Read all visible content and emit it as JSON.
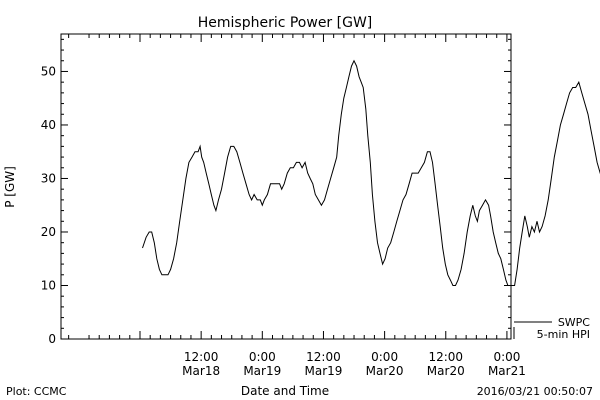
{
  "chart_data": {
    "type": "line",
    "title": "Hemispheric Power [GW]",
    "xlabel": "Date and Time",
    "ylabel": "P [GW]",
    "x_range_hours": [
      -15.5,
      72.8
    ],
    "ylim": [
      0,
      57
    ],
    "y_ticks": [
      0,
      10,
      20,
      30,
      40,
      50
    ],
    "x_ticks": [
      {
        "x": 12,
        "line1": "12:00",
        "line2": "Mar18"
      },
      {
        "x": 24,
        "line1": "0:00",
        "line2": "Mar19"
      },
      {
        "x": 36,
        "line1": "12:00",
        "line2": "Mar19"
      },
      {
        "x": 48,
        "line1": "0:00",
        "line2": "Mar20"
      },
      {
        "x": 60,
        "line1": "12:00",
        "line2": "Mar20"
      },
      {
        "x": 72,
        "line1": "0:00",
        "line2": "Mar21"
      }
    ],
    "grid": false,
    "legend": {
      "placement": "right-bottom",
      "line1": "SWPC",
      "line2": "5-min HPI"
    },
    "series": [
      {
        "name": "SWPC",
        "color": "#000000",
        "points": [
          [
            0.5,
            17
          ],
          [
            1.2,
            19
          ],
          [
            1.8,
            20
          ],
          [
            2.3,
            20
          ],
          [
            2.8,
            18
          ],
          [
            3.3,
            15
          ],
          [
            3.8,
            13
          ],
          [
            4.3,
            12
          ],
          [
            5.0,
            12
          ],
          [
            5.5,
            12
          ],
          [
            6.0,
            13
          ],
          [
            6.6,
            15
          ],
          [
            7.2,
            18
          ],
          [
            7.8,
            22
          ],
          [
            8.4,
            26
          ],
          [
            9.0,
            30
          ],
          [
            9.6,
            33
          ],
          [
            10.2,
            34
          ],
          [
            10.8,
            35
          ],
          [
            11.4,
            35
          ],
          [
            11.8,
            36
          ],
          [
            12.1,
            34
          ],
          [
            12.5,
            33
          ],
          [
            13.0,
            31
          ],
          [
            13.5,
            29
          ],
          [
            14.0,
            27
          ],
          [
            14.5,
            25
          ],
          [
            14.9,
            24
          ],
          [
            15.4,
            26
          ],
          [
            16.0,
            28
          ],
          [
            16.6,
            31
          ],
          [
            17.2,
            34
          ],
          [
            17.8,
            36
          ],
          [
            18.4,
            36
          ],
          [
            19.0,
            35
          ],
          [
            19.6,
            33
          ],
          [
            20.2,
            31
          ],
          [
            20.8,
            29
          ],
          [
            21.4,
            27
          ],
          [
            21.9,
            26
          ],
          [
            22.4,
            27
          ],
          [
            23.0,
            26
          ],
          [
            23.6,
            26
          ],
          [
            24.0,
            25
          ],
          [
            24.4,
            26
          ],
          [
            25.0,
            27
          ],
          [
            25.6,
            29
          ],
          [
            26.2,
            29
          ],
          [
            26.8,
            29
          ],
          [
            27.4,
            29
          ],
          [
            27.8,
            28
          ],
          [
            28.3,
            29
          ],
          [
            28.9,
            31
          ],
          [
            29.5,
            32
          ],
          [
            30.1,
            32
          ],
          [
            30.7,
            33
          ],
          [
            31.3,
            33
          ],
          [
            31.8,
            32
          ],
          [
            32.4,
            33
          ],
          [
            32.9,
            31
          ],
          [
            33.4,
            30
          ],
          [
            33.9,
            29
          ],
          [
            34.4,
            27
          ],
          [
            35.0,
            26
          ],
          [
            35.6,
            25
          ],
          [
            36.2,
            26
          ],
          [
            36.8,
            28
          ],
          [
            37.4,
            30
          ],
          [
            38.0,
            32
          ],
          [
            38.6,
            34
          ],
          [
            39.0,
            38
          ],
          [
            39.5,
            42
          ],
          [
            40.0,
            45
          ],
          [
            40.5,
            47
          ],
          [
            41.0,
            49
          ],
          [
            41.5,
            51
          ],
          [
            42.0,
            52
          ],
          [
            42.5,
            51
          ],
          [
            43.0,
            49
          ],
          [
            43.4,
            48
          ],
          [
            43.8,
            47
          ],
          [
            44.3,
            43
          ],
          [
            44.7,
            38
          ],
          [
            45.2,
            33
          ],
          [
            45.6,
            27
          ],
          [
            46.1,
            22
          ],
          [
            46.6,
            18
          ],
          [
            47.1,
            16
          ],
          [
            47.6,
            14
          ],
          [
            48.1,
            15
          ],
          [
            48.6,
            17
          ],
          [
            49.2,
            18
          ],
          [
            49.8,
            20
          ],
          [
            50.4,
            22
          ],
          [
            51.0,
            24
          ],
          [
            51.6,
            26
          ],
          [
            52.2,
            27
          ],
          [
            52.8,
            29
          ],
          [
            53.4,
            31
          ],
          [
            54.0,
            31
          ],
          [
            54.6,
            31
          ],
          [
            55.2,
            32
          ],
          [
            55.8,
            33
          ],
          [
            56.4,
            35
          ],
          [
            56.9,
            35
          ],
          [
            57.4,
            33
          ],
          [
            57.9,
            29
          ],
          [
            58.4,
            25
          ],
          [
            58.9,
            21
          ],
          [
            59.4,
            17
          ],
          [
            59.9,
            14
          ],
          [
            60.4,
            12
          ],
          [
            60.9,
            11
          ],
          [
            61.4,
            10
          ],
          [
            61.9,
            10
          ],
          [
            62.4,
            11
          ],
          [
            63.0,
            13
          ],
          [
            63.6,
            16
          ],
          [
            64.2,
            20
          ],
          [
            64.8,
            23
          ],
          [
            65.3,
            25
          ],
          [
            65.8,
            23
          ],
          [
            66.2,
            22
          ],
          [
            66.6,
            24
          ],
          [
            67.2,
            25
          ],
          [
            67.8,
            26
          ],
          [
            68.4,
            25
          ],
          [
            68.8,
            23
          ],
          [
            69.3,
            20
          ],
          [
            69.8,
            18
          ],
          [
            70.3,
            16
          ],
          [
            70.8,
            15
          ],
          [
            71.3,
            13
          ],
          [
            71.8,
            11
          ],
          [
            72.2,
            10
          ],
          [
            72.6,
            10
          ],
          [
            73.0,
            10
          ],
          [
            73.5,
            10
          ],
          [
            74.0,
            13
          ],
          [
            74.5,
            17
          ],
          [
            75.0,
            20
          ],
          [
            75.5,
            23
          ],
          [
            76.0,
            21
          ],
          [
            76.4,
            19
          ],
          [
            76.9,
            21
          ],
          [
            77.4,
            20
          ],
          [
            77.9,
            22
          ],
          [
            78.4,
            20
          ],
          [
            78.9,
            21
          ],
          [
            79.5,
            23
          ],
          [
            80.1,
            26
          ],
          [
            80.7,
            30
          ],
          [
            81.3,
            34
          ],
          [
            81.9,
            37
          ],
          [
            82.5,
            40
          ],
          [
            83.1,
            42
          ],
          [
            83.7,
            44
          ],
          [
            84.3,
            46
          ],
          [
            84.9,
            47
          ],
          [
            85.5,
            47
          ],
          [
            86.1,
            48
          ],
          [
            86.7,
            46
          ],
          [
            87.3,
            44
          ],
          [
            87.9,
            42
          ],
          [
            88.5,
            39
          ],
          [
            89.1,
            36
          ],
          [
            89.7,
            33
          ],
          [
            90.3,
            31
          ],
          [
            90.9,
            29
          ],
          [
            91.5,
            28
          ]
        ]
      }
    ]
  },
  "footer": {
    "left": "Plot: CCMC",
    "right": "2016/03/21 00:50:07"
  }
}
